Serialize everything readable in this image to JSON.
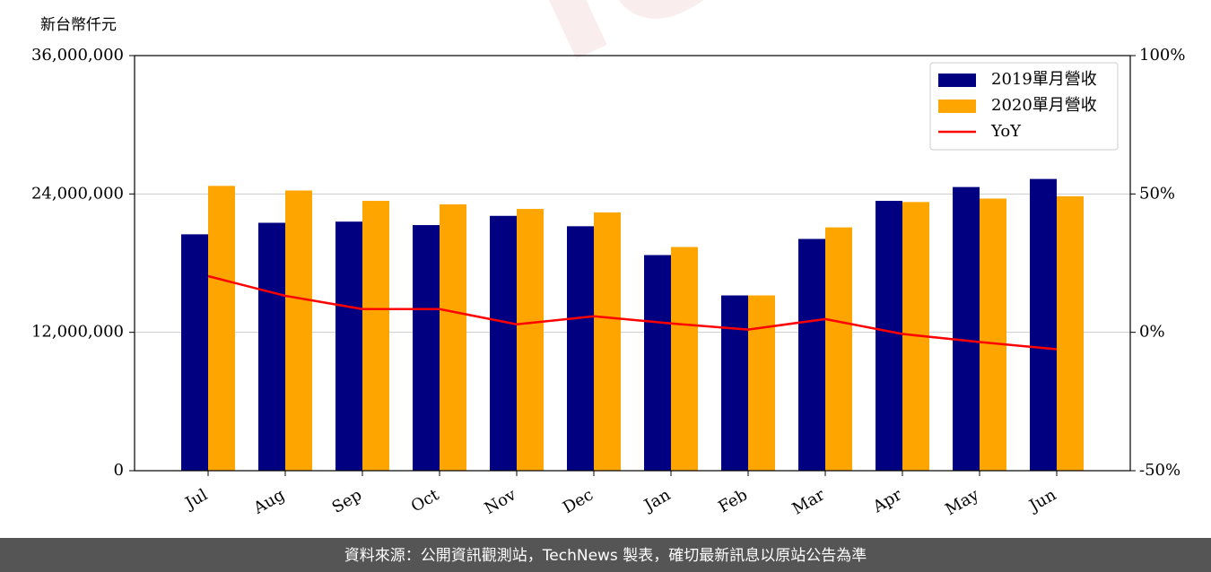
{
  "chart_data": {
    "type": "bar",
    "y_unit_label": "新台幣仟元",
    "watermark": "TechNews",
    "source": "資料來源：公開資訊觀測站，TechNews 製表，確切最新訊息以原站公告為準",
    "categories": [
      "Jul",
      "Aug",
      "Sep",
      "Oct",
      "Nov",
      "Dec",
      "Jan",
      "Feb",
      "Mar",
      "Apr",
      "May",
      "Jun"
    ],
    "series": [
      {
        "name": "2019單月營收",
        "type": "bar",
        "color": "#000080",
        "values": [
          20500000,
          21500000,
          21600000,
          21300000,
          22100000,
          21200000,
          18700000,
          15200000,
          20100000,
          23400000,
          24600000,
          25300000
        ]
      },
      {
        "name": "2020單月營收",
        "type": "bar",
        "color": "#ffa500",
        "values": [
          24700000,
          24300000,
          23400000,
          23100000,
          22700000,
          22400000,
          19400000,
          15200000,
          21100000,
          23300000,
          23600000,
          23800000
        ]
      },
      {
        "name": "YoY",
        "type": "line",
        "axis": "y2",
        "color": "#ff0000",
        "values": [
          20.3,
          13.2,
          8.4,
          8.4,
          2.9,
          5.8,
          3.2,
          1.0,
          4.8,
          -0.6,
          -3.5,
          -6.1
        ]
      }
    ],
    "ylim": [
      0,
      36000000
    ],
    "yticks": [
      0,
      {
        "value": 12000000,
        "label": "12,000,000"
      },
      {
        "value": 24000000,
        "label": "24,000,000"
      },
      {
        "value": 36000000,
        "label": "36,000,000"
      }
    ],
    "y2lim": [
      -50,
      100
    ],
    "y2ticks": [
      {
        "value": -50,
        "label": "-50%"
      },
      {
        "value": 0,
        "label": "0%"
      },
      {
        "value": 50,
        "label": "50%"
      },
      {
        "value": 100,
        "label": "100%"
      }
    ],
    "grid": true,
    "legend": "upper right"
  }
}
